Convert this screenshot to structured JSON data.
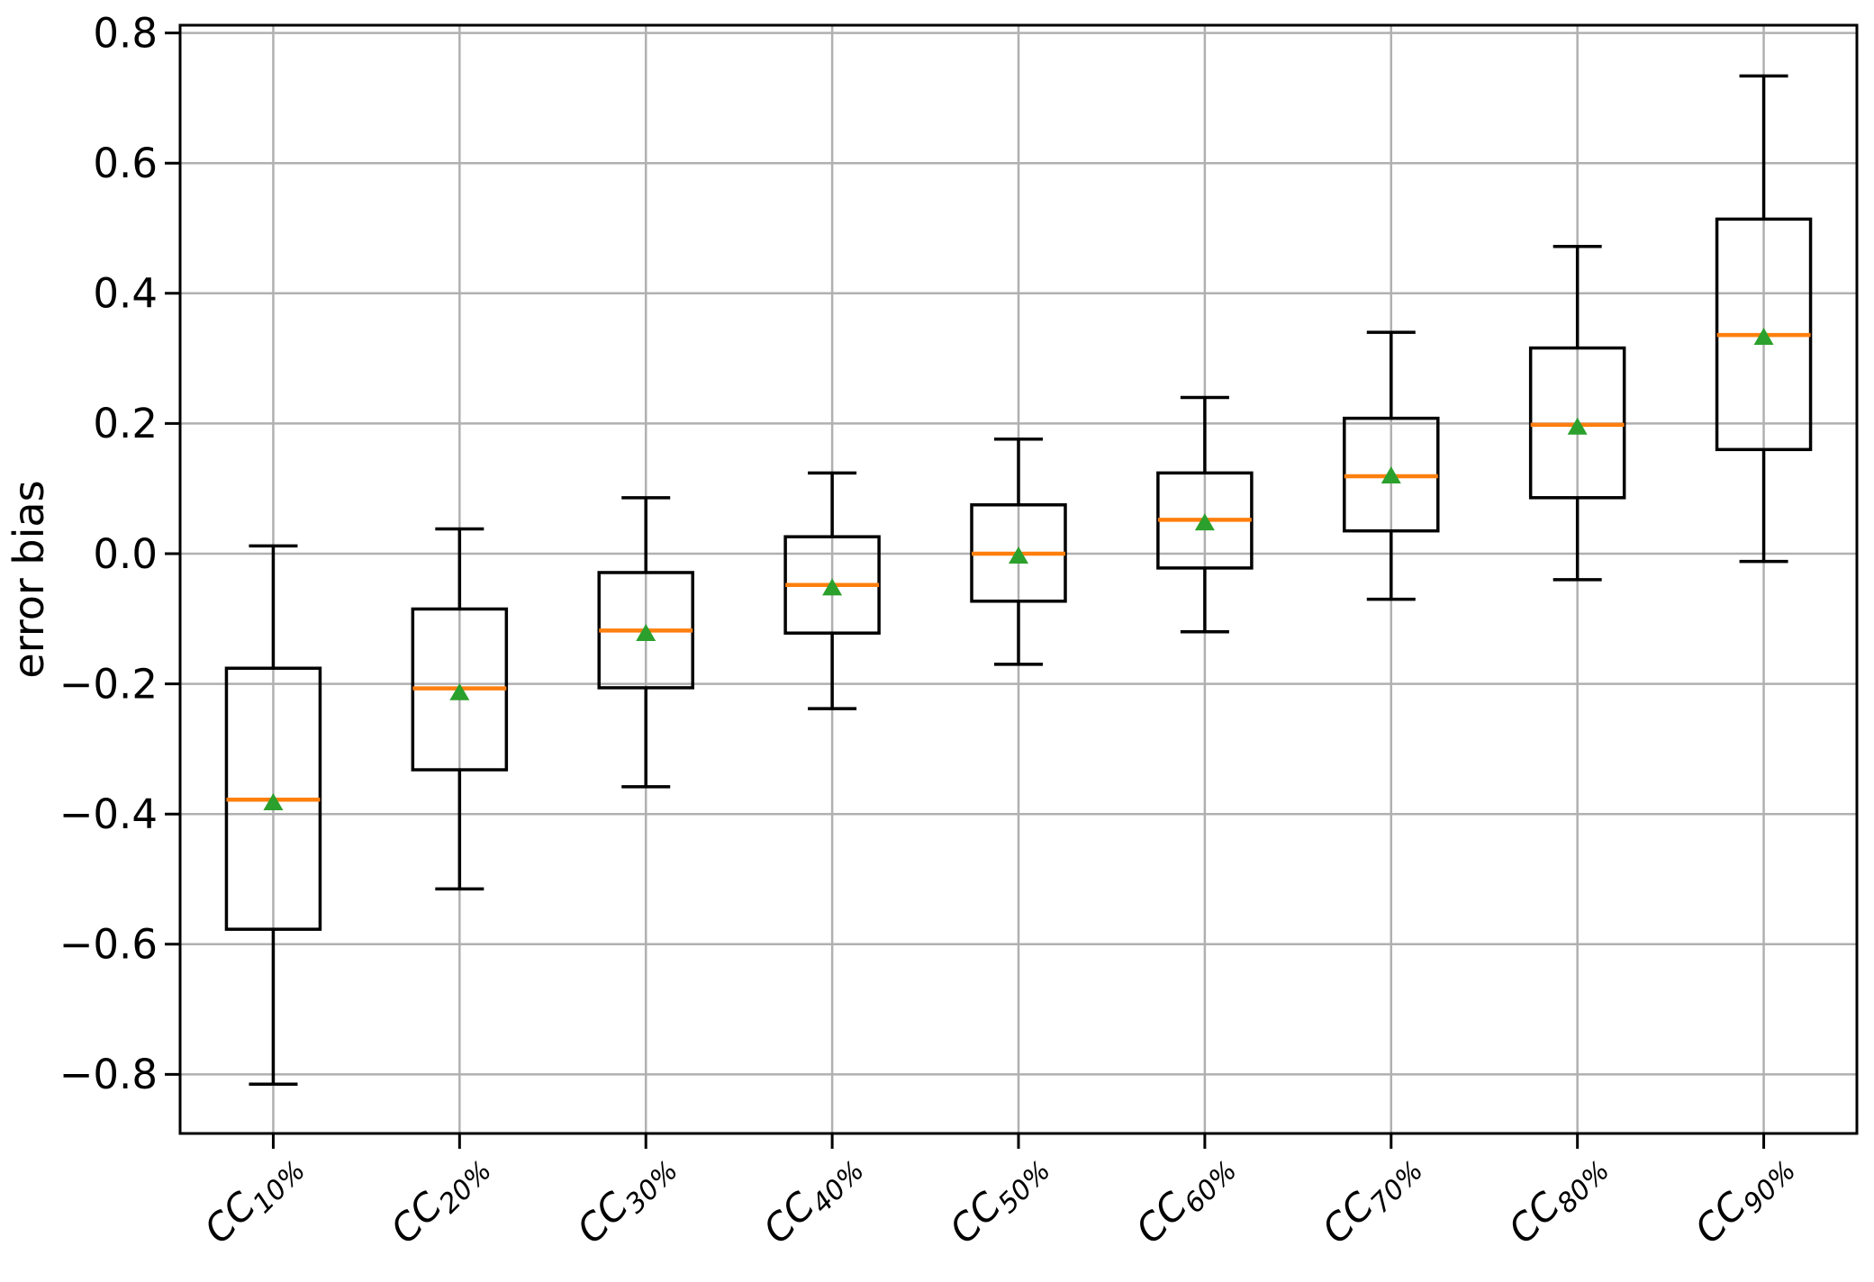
{
  "figure": {
    "background": "#ffffff",
    "colors": {
      "frame": "#000000",
      "grid": "#b0b0b0",
      "box_line": "#000000",
      "median_line": "#ff7f0e",
      "mean_marker": "#2ca02c",
      "tick_label": "#000000"
    }
  },
  "chart_data": {
    "type": "boxplot",
    "title": "",
    "xlabel": "",
    "ylabel": "error bias",
    "ylim": [
      -0.89,
      0.81
    ],
    "grid": true,
    "ytick_values": [
      0.8,
      0.6,
      0.4,
      0.2,
      0.0,
      -0.2,
      -0.4,
      -0.6,
      -0.8
    ],
    "ytick_labels": [
      "0.8",
      "0.6",
      "0.4",
      "0.2",
      "0.0",
      "−0.2",
      "−0.4",
      "−0.6",
      "−0.8"
    ],
    "category_prefix": "CC",
    "categories": [
      "10%",
      "20%",
      "30%",
      "40%",
      "50%",
      "60%",
      "70%",
      "80%",
      "90%"
    ],
    "boxes": [
      {
        "label": "CC 10%",
        "whislo": -0.815,
        "q1": -0.577,
        "med": -0.378,
        "mean": -0.381,
        "q3": -0.176,
        "whishi": 0.012
      },
      {
        "label": "CC 20%",
        "whislo": -0.515,
        "q1": -0.332,
        "med": -0.207,
        "mean": -0.212,
        "q3": -0.085,
        "whishi": 0.038
      },
      {
        "label": "CC 30%",
        "whislo": -0.358,
        "q1": -0.206,
        "med": -0.118,
        "mean": -0.121,
        "q3": -0.029,
        "whishi": 0.086
      },
      {
        "label": "CC 40%",
        "whislo": -0.238,
        "q1": -0.122,
        "med": -0.048,
        "mean": -0.051,
        "q3": 0.026,
        "whishi": 0.124
      },
      {
        "label": "CC 50%",
        "whislo": -0.17,
        "q1": -0.073,
        "med": 0.0,
        "mean": -0.002,
        "q3": 0.075,
        "whishi": 0.176
      },
      {
        "label": "CC 60%",
        "whislo": -0.12,
        "q1": -0.022,
        "med": 0.052,
        "mean": 0.049,
        "q3": 0.124,
        "whishi": 0.24
      },
      {
        "label": "CC 70%",
        "whislo": -0.07,
        "q1": 0.035,
        "med": 0.119,
        "mean": 0.121,
        "q3": 0.208,
        "whishi": 0.34
      },
      {
        "label": "CC 80%",
        "whislo": -0.04,
        "q1": 0.086,
        "med": 0.198,
        "mean": 0.196,
        "q3": 0.316,
        "whishi": 0.472
      },
      {
        "label": "CC 90%",
        "whislo": -0.012,
        "q1": 0.16,
        "med": 0.336,
        "mean": 0.334,
        "q3": 0.514,
        "whishi": 0.734
      }
    ],
    "legend": null,
    "marker_note": "green upward triangle = mean, orange line = median"
  }
}
